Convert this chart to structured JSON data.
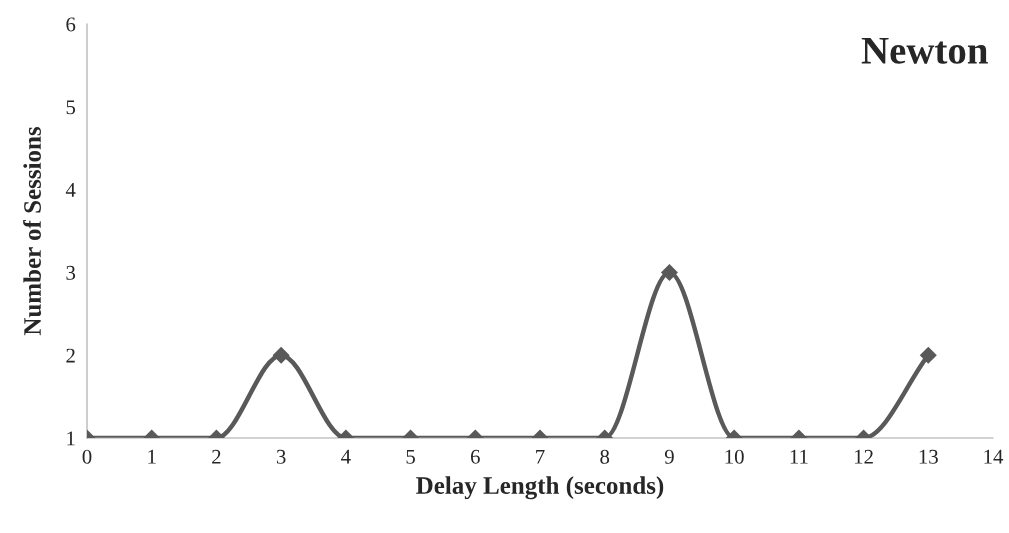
{
  "chart_data": {
    "type": "line",
    "title": "Newton",
    "xlabel": "Delay Length (seconds)",
    "ylabel": "Number of Sessions",
    "x": [
      0,
      1,
      2,
      3,
      4,
      5,
      6,
      7,
      8,
      9,
      10,
      11,
      12,
      13
    ],
    "series": [
      {
        "color": "#595959",
        "values": [
          1,
          1,
          1,
          2,
          1,
          1,
          1,
          1,
          1,
          3,
          1,
          1,
          1,
          2
        ]
      }
    ],
    "xlim": [
      0,
      14
    ],
    "xticks": [
      0,
      1,
      2,
      3,
      4,
      5,
      6,
      7,
      8,
      9,
      10,
      11,
      12,
      13,
      14
    ],
    "ylim": [
      1,
      6
    ],
    "yticks": [
      1,
      2,
      3,
      4,
      5,
      6
    ],
    "marker": "diamond",
    "line_style": "solid",
    "grid": false,
    "legend": false
  }
}
